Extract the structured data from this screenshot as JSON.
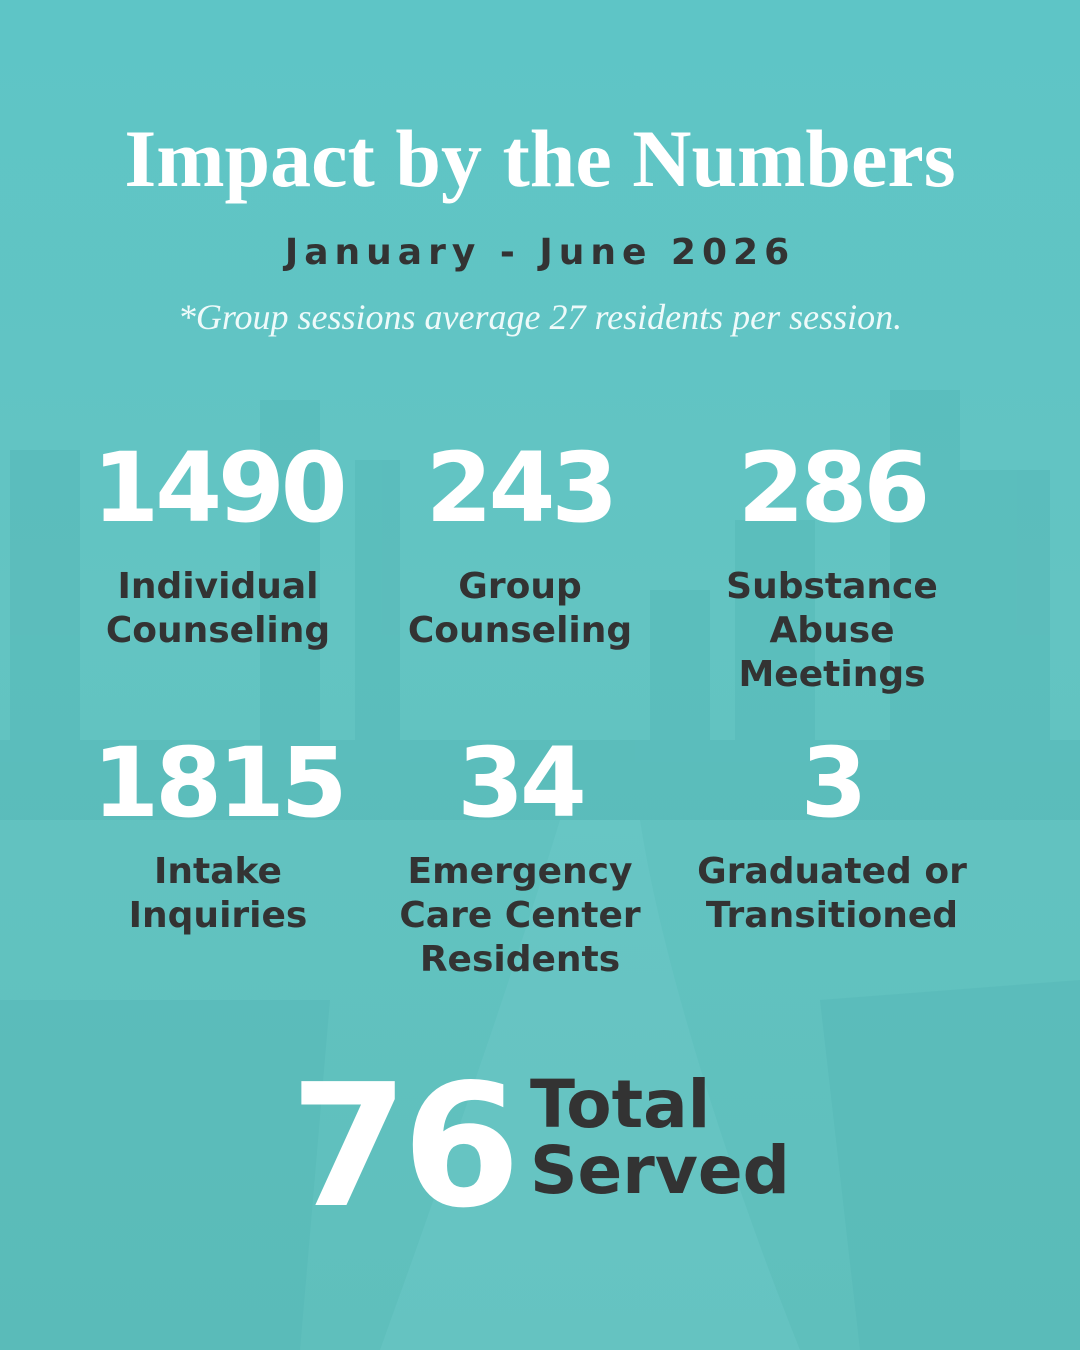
{
  "header": {
    "title": "Impact by the Numbers",
    "period": "January - June 2026",
    "note": "*Group sessions average 27 residents per session."
  },
  "stats": [
    {
      "value": 1490,
      "label": [
        "Individual",
        "Counseling"
      ]
    },
    {
      "value": 243,
      "label": [
        "Group",
        "Counseling"
      ]
    },
    {
      "value": 286,
      "label": [
        "Substance",
        "Abuse",
        "Meetings"
      ]
    },
    {
      "value": 1815,
      "label": [
        "Intake",
        "Inquiries"
      ]
    },
    {
      "value": 34,
      "label": [
        "Emergency",
        "Care Center",
        "Residents"
      ]
    },
    {
      "value": 3,
      "label": [
        "Graduated or",
        "Transitioned"
      ]
    }
  ],
  "total": {
    "value": 76,
    "label": [
      "Total",
      "Served"
    ]
  }
}
